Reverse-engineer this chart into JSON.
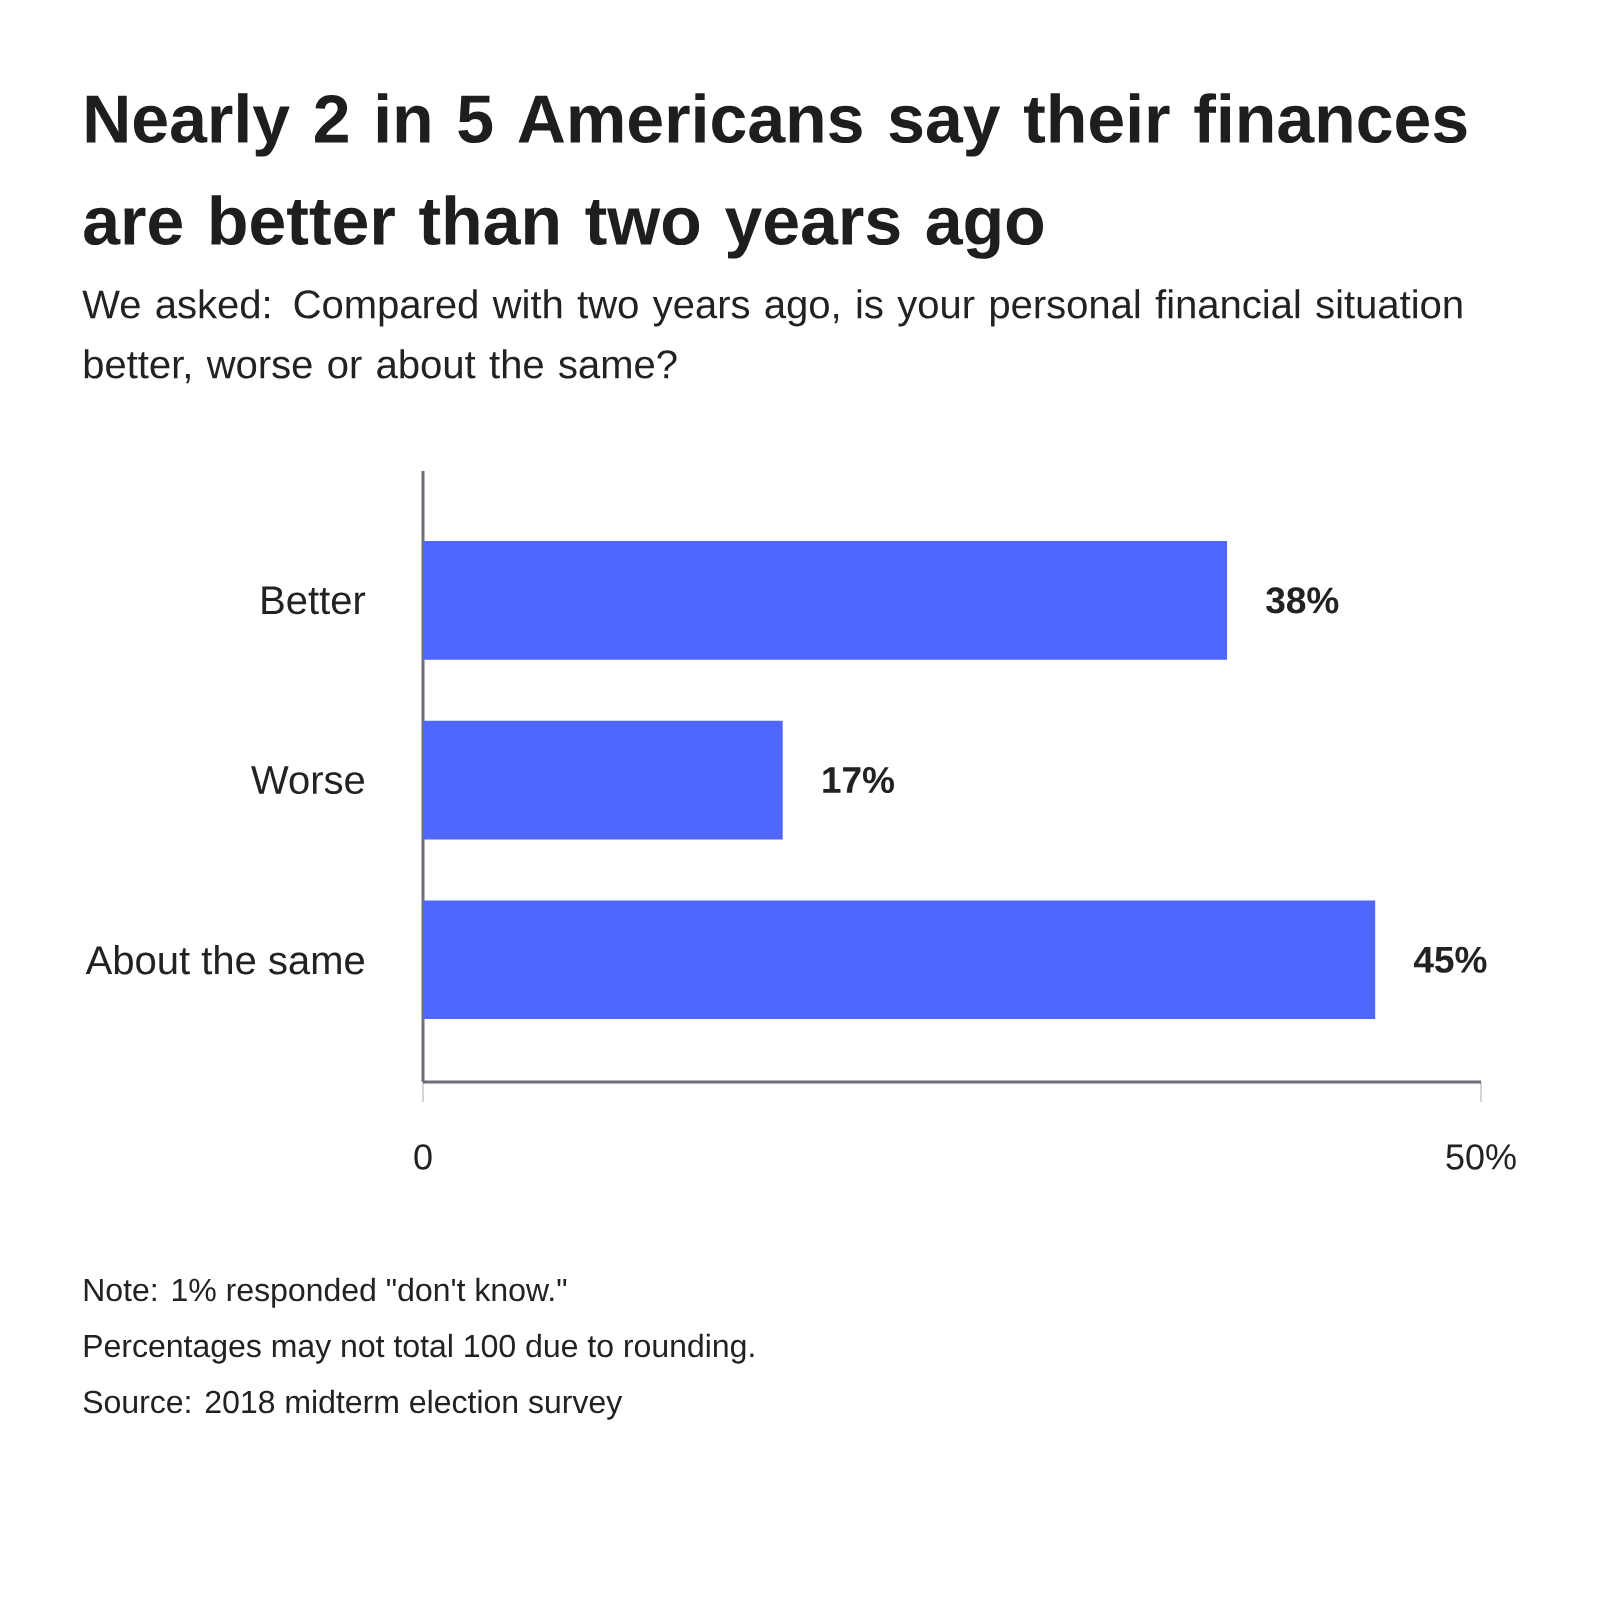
{
  "chart_data": {
    "type": "bar",
    "orientation": "horizontal",
    "title": "Nearly 2 in 5 Americans say their finances are better than two years ago",
    "subtitle": "We asked: Compared with two years ago, is your personal financial situation better, worse or about the same?",
    "categories": [
      "Better",
      "Worse",
      "About the same"
    ],
    "values": [
      38,
      17,
      45
    ],
    "color": "#4f66ff",
    "value_labels": [
      "38%",
      "17%",
      "45%"
    ],
    "xlim": [
      0,
      50
    ],
    "xticks": [
      0,
      {
        "value": 50,
        "label": "50%"
      }
    ],
    "annotations": [
      "Note: 1% responded \"don't know.\"",
      "Percentages may not total 100 due to rounding.",
      "Source: 2018 midterm election survey"
    ]
  }
}
